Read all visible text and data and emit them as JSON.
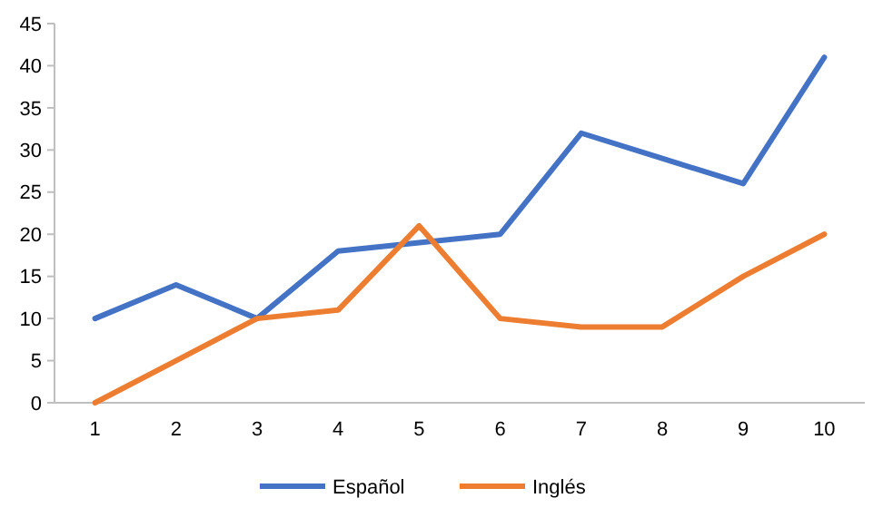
{
  "chart_data": {
    "type": "line",
    "categories": [
      "1",
      "2",
      "3",
      "4",
      "5",
      "6",
      "7",
      "8",
      "9",
      "10"
    ],
    "series": [
      {
        "name": "Español",
        "color": "#4472c4",
        "values": [
          10,
          14,
          10,
          18,
          19,
          20,
          32,
          29,
          26,
          41
        ]
      },
      {
        "name": "Inglés",
        "color": "#ed7d31",
        "values": [
          0,
          5,
          10,
          11,
          21,
          10,
          9,
          9,
          15,
          20
        ]
      }
    ],
    "ylim": [
      0,
      45
    ],
    "yticks": [
      0,
      5,
      10,
      15,
      20,
      25,
      30,
      35,
      40,
      45
    ],
    "grid": false,
    "legend": "bottom",
    "line_style": "solid",
    "marker": "none"
  }
}
